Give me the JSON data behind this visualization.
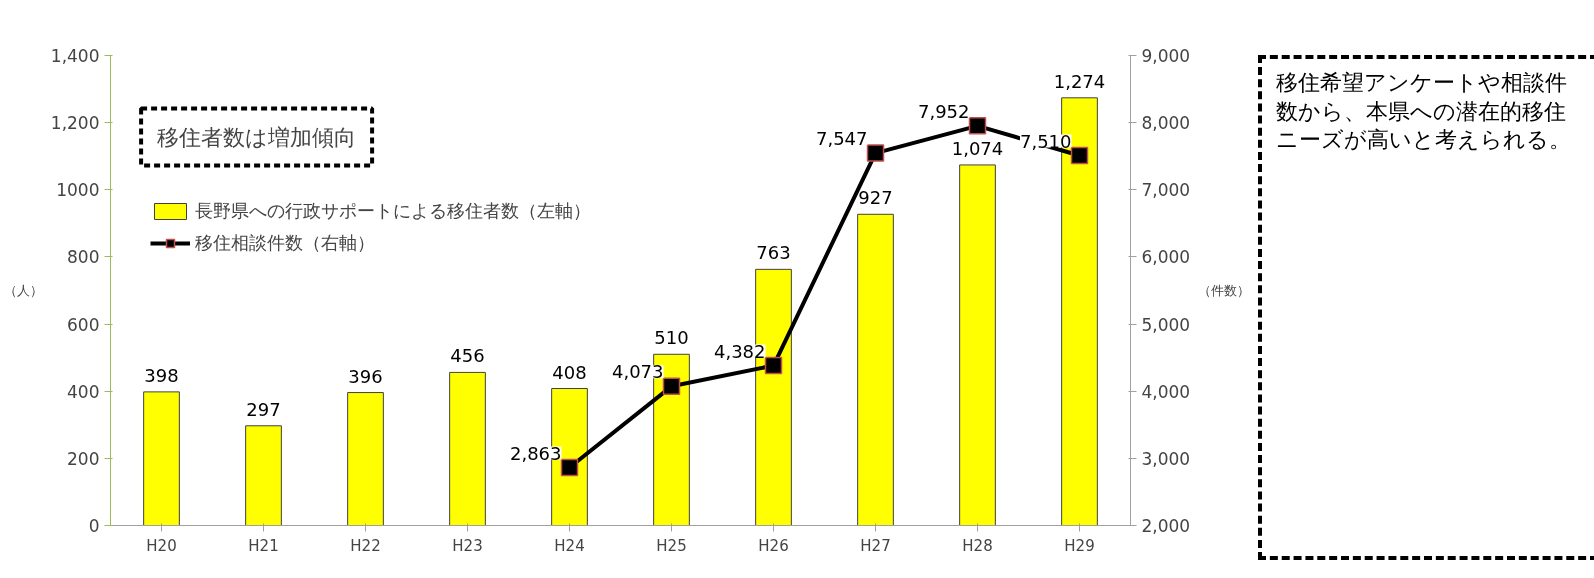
{
  "chart_data": {
    "type": "bar",
    "categories": [
      "H20",
      "H21",
      "H22",
      "H23",
      "H24",
      "H25",
      "H26",
      "H27",
      "H28",
      "H29"
    ],
    "ylabel": "（人）",
    "y2label": "（件数）",
    "series": [
      {
        "name": "長野県への行政サポートによる移住者数（左軸）",
        "color": "#ffff00",
        "values": [
          398,
          297,
          396,
          456,
          408,
          510,
          763,
          927,
          1074,
          1274
        ],
        "value_labels": [
          "398",
          "297",
          "396",
          "456",
          "408",
          "510",
          "763",
          "927",
          "1,074",
          "1,274"
        ]
      },
      {
        "name": "移住相談件数（右軸）",
        "type": "line",
        "axis": "y2",
        "color": "#000000",
        "marker": "square",
        "values": [
          null,
          null,
          null,
          null,
          2863,
          4073,
          4382,
          7547,
          7952,
          7510
        ],
        "value_labels": [
          null,
          null,
          null,
          null,
          "2,863",
          "4,073",
          "4,382",
          "7,547",
          "7,952",
          "7,510"
        ]
      }
    ],
    "ylim": [
      0,
      1400
    ],
    "yticks": [
      0,
      200,
      400,
      600,
      800,
      1000,
      {
        "value": 1200,
        "label": "1,200"
      },
      {
        "value": 1400,
        "label": "1,400"
      }
    ],
    "y2lim": [
      2000,
      9000
    ],
    "y2ticks": [
      {
        "value": 2000,
        "label": "2,000"
      },
      {
        "value": 3000,
        "label": "3,000"
      },
      {
        "value": 4000,
        "label": "4,000"
      },
      {
        "value": 5000,
        "label": "5,000"
      },
      {
        "value": 6000,
        "label": "6,000"
      },
      {
        "value": 7000,
        "label": "7,000"
      },
      {
        "value": 8000,
        "label": "8,000"
      },
      {
        "value": 9000,
        "label": "9,000"
      }
    ],
    "grid": false,
    "legend": "top left",
    "annotations": [
      "移住者数は増加傾向",
      "移住希望アンケートや相談件数から、本県への潜在的移住ニーズが高いと考えられる。"
    ]
  }
}
